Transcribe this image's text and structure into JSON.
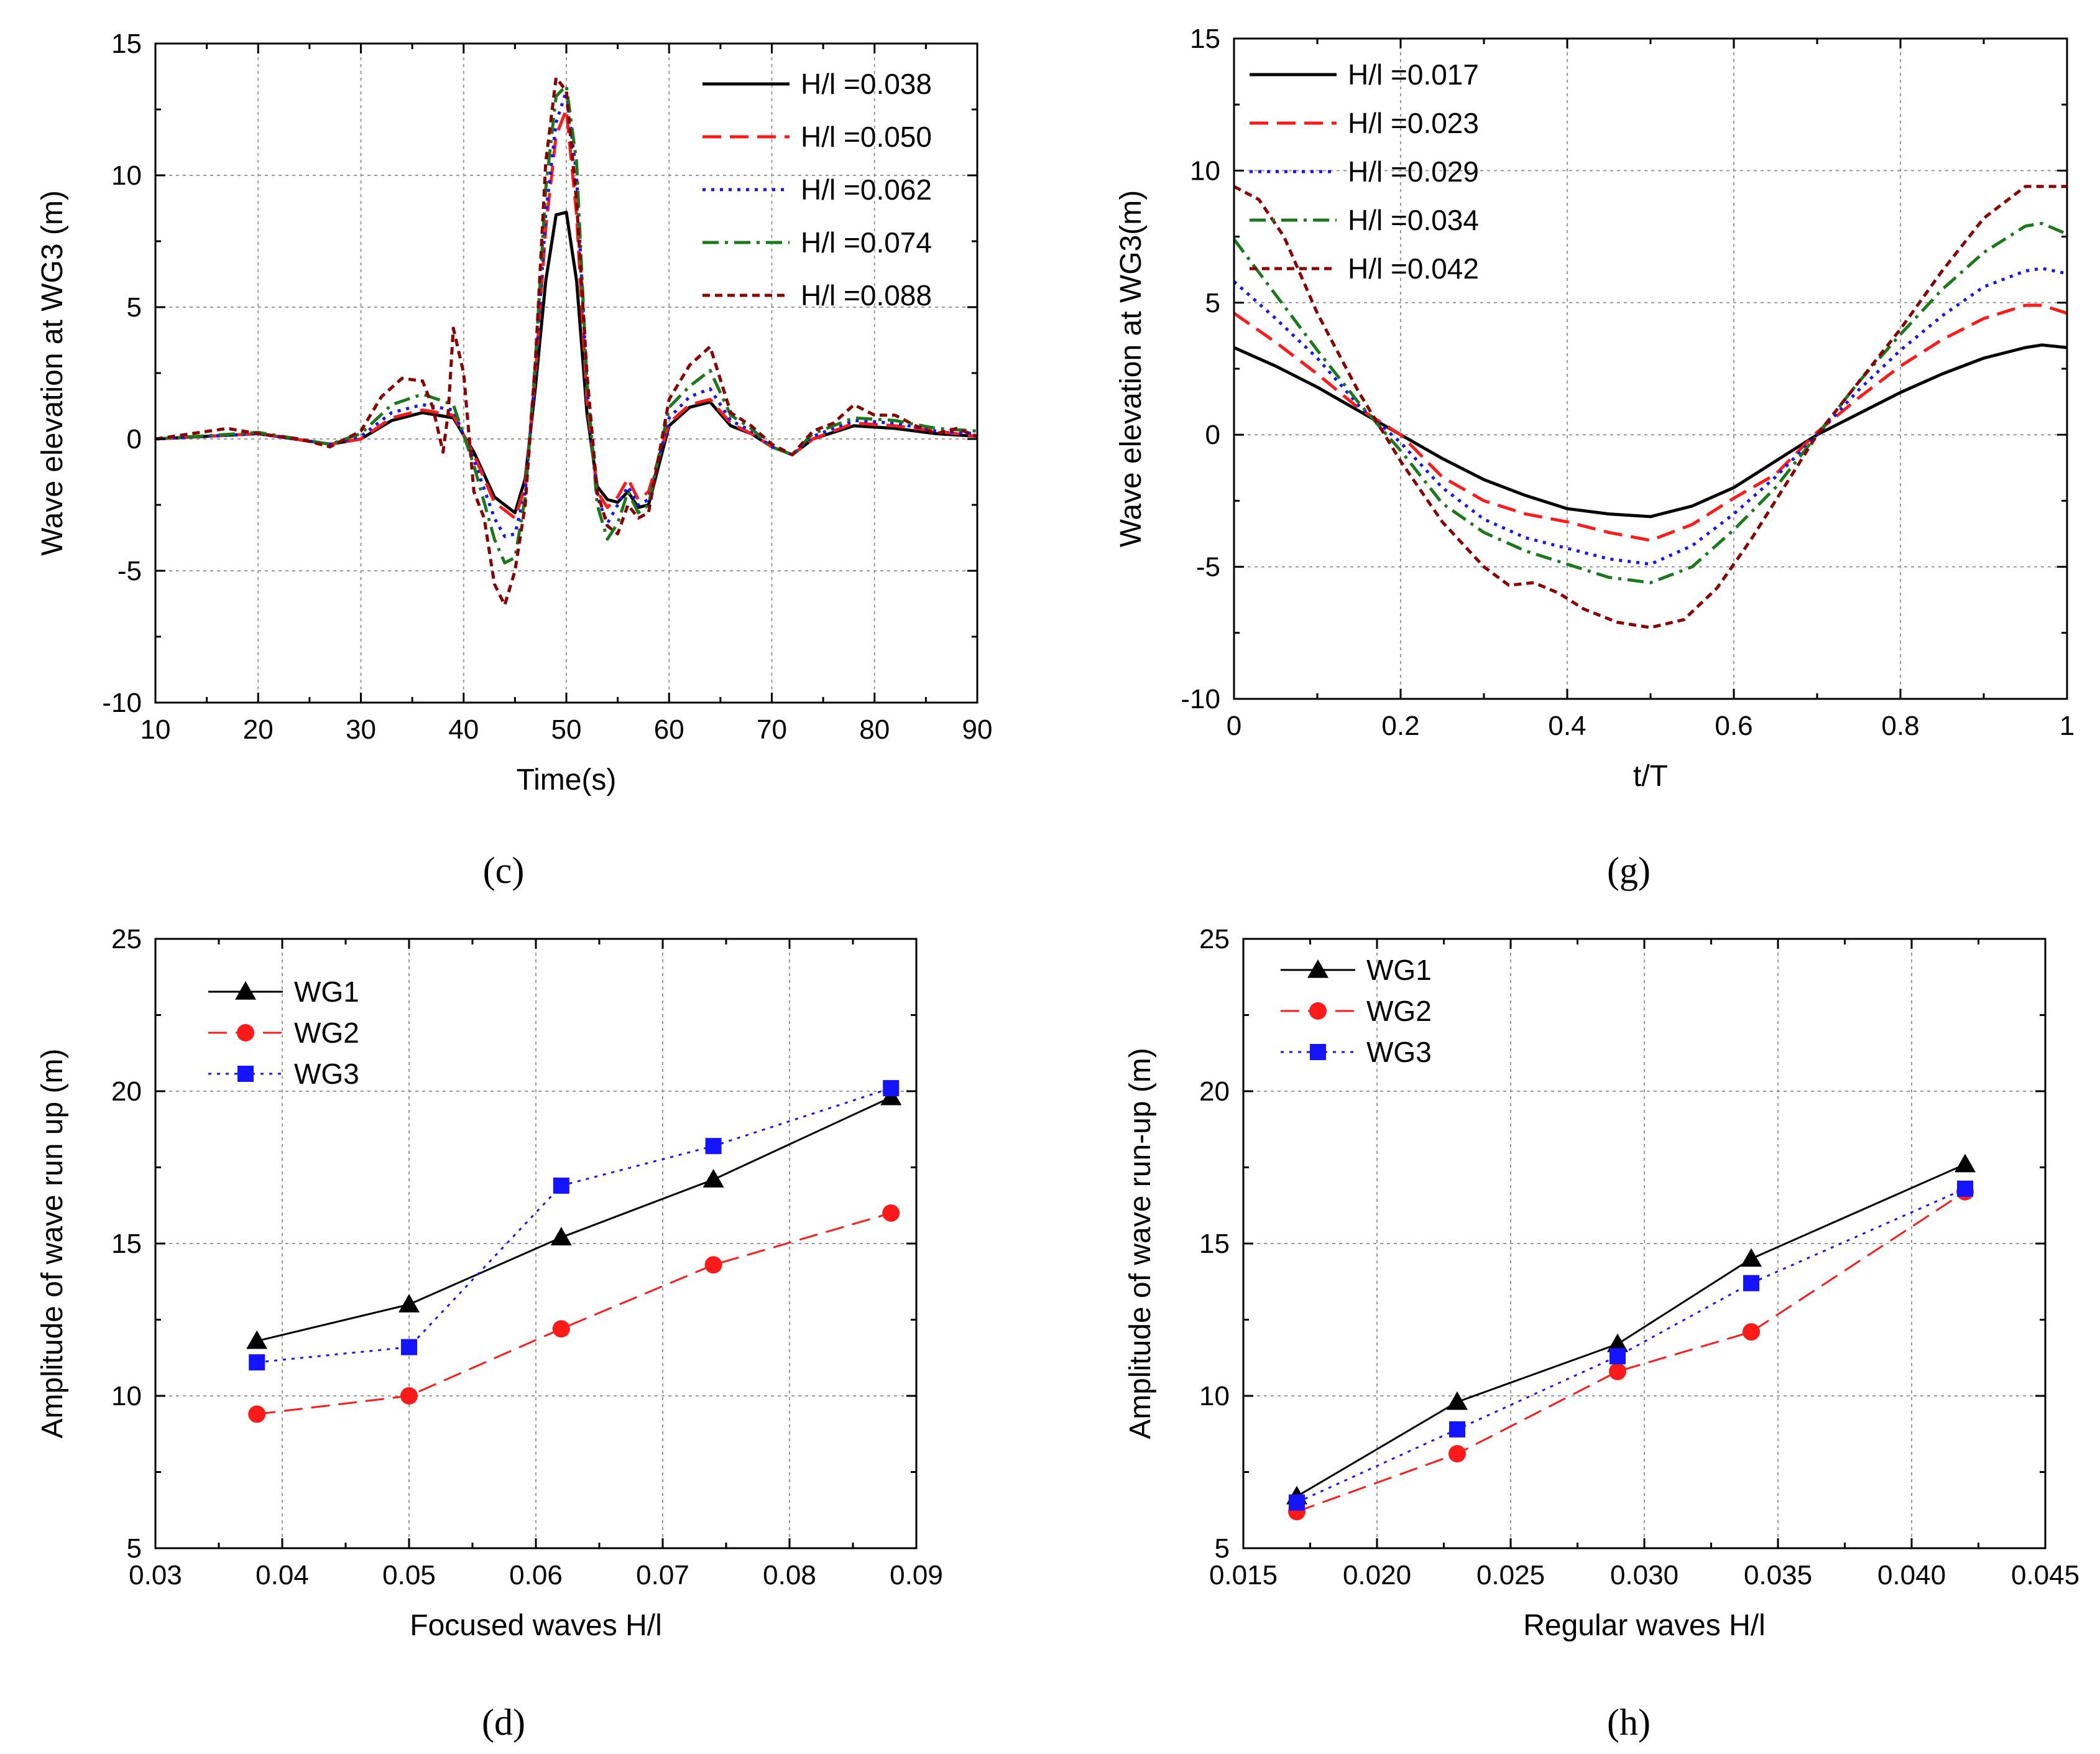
{
  "colors": {
    "black": "#000000",
    "red": "#ff1a1a",
    "blue": "#1414ff",
    "green": "#1a7a1a",
    "darkred": "#8b0000"
  },
  "chart_data": [
    {
      "id": "c",
      "type": "line",
      "panel_label": "(c)",
      "title": "",
      "xlabel": "Time(s)",
      "ylabel": "Wave elevation at WG3 (m)",
      "xlim": [
        10,
        90
      ],
      "ylim": [
        -10,
        15
      ],
      "xticks": [
        10,
        20,
        30,
        40,
        50,
        60,
        70,
        80,
        90
      ],
      "yticks": [
        -10,
        -5,
        0,
        5,
        10,
        15
      ],
      "grid": true,
      "legend_position": "top-right",
      "series": [
        {
          "name": "H/l =0.038",
          "style": "solid",
          "color": "#000000",
          "x": [
            10,
            20,
            27,
            30,
            33,
            36,
            39,
            41,
            43,
            45,
            46,
            47,
            48,
            49,
            50,
            51,
            52,
            53,
            54,
            55,
            56,
            57,
            58,
            60,
            62,
            64,
            66,
            68,
            70,
            72,
            74,
            78,
            82,
            86,
            90
          ],
          "y": [
            0,
            0.2,
            -0.2,
            0,
            0.7,
            1.0,
            0.8,
            -0.5,
            -2.2,
            -2.8,
            -1.5,
            2.0,
            6.0,
            8.5,
            8.6,
            6.0,
            1.0,
            -1.8,
            -2.3,
            -2.4,
            -2.0,
            -2.6,
            -2.5,
            0.5,
            1.2,
            1.4,
            0.5,
            0.2,
            -0.3,
            -0.6,
            0.0,
            0.5,
            0.4,
            0.2,
            0.1
          ]
        },
        {
          "name": "H/l =0.050",
          "style": "dashed",
          "color": "#ff1a1a",
          "x": [
            10,
            20,
            27,
            30,
            33,
            36,
            39,
            41,
            43,
            45,
            46,
            47,
            48,
            49,
            50,
            51,
            52,
            53,
            54,
            55,
            56,
            57,
            58,
            60,
            62,
            64,
            66,
            68,
            70,
            72,
            74,
            78,
            82,
            86,
            90
          ],
          "y": [
            0,
            0.2,
            -0.2,
            0,
            0.8,
            1.1,
            0.9,
            -0.6,
            -2.4,
            -3.0,
            -1.8,
            2.5,
            8.0,
            11.5,
            12.5,
            8.5,
            1.5,
            -2.0,
            -2.6,
            -2.2,
            -1.5,
            -2.3,
            -2.0,
            0.6,
            1.3,
            1.5,
            0.6,
            0.2,
            -0.3,
            -0.6,
            0.0,
            0.6,
            0.5,
            0.3,
            0.1
          ]
        },
        {
          "name": "H/l =0.062",
          "style": "dotted",
          "color": "#1414ff",
          "x": [
            10,
            20,
            27,
            30,
            33,
            36,
            39,
            41,
            43,
            44,
            45,
            46,
            47,
            48,
            49,
            50,
            51,
            52,
            53,
            54,
            55,
            56,
            57,
            58,
            60,
            62,
            64,
            66,
            68,
            70,
            72,
            74,
            78,
            82,
            86,
            90
          ],
          "y": [
            0,
            0.2,
            -0.2,
            0.1,
            1.0,
            1.3,
            1.1,
            -0.8,
            -3.0,
            -3.7,
            -3.6,
            -2.0,
            2.5,
            8.5,
            12.0,
            13.2,
            10.0,
            2.0,
            -2.2,
            -3.2,
            -2.5,
            -1.8,
            -2.5,
            -2.3,
            0.8,
            1.6,
            1.9,
            0.7,
            0.3,
            -0.3,
            -0.6,
            0.1,
            0.7,
            0.6,
            0.3,
            0.2
          ]
        },
        {
          "name": "H/l =0.074",
          "style": "dashdot",
          "color": "#1a7a1a",
          "x": [
            10,
            20,
            27,
            30,
            33,
            36,
            39,
            41,
            43,
            44,
            45,
            46,
            47,
            48,
            49,
            50,
            51,
            52,
            53,
            54,
            55,
            56,
            57,
            58,
            60,
            62,
            64,
            66,
            68,
            70,
            72,
            74,
            78,
            82,
            86,
            90
          ],
          "y": [
            0,
            0.25,
            -0.2,
            0.2,
            1.3,
            1.7,
            1.3,
            -1.0,
            -3.8,
            -4.7,
            -4.5,
            -2.2,
            3.0,
            9.5,
            13.0,
            13.4,
            10.5,
            2.2,
            -2.5,
            -3.8,
            -3.2,
            -2.0,
            -2.8,
            -2.5,
            1.2,
            2.0,
            2.6,
            0.9,
            0.4,
            -0.3,
            -0.6,
            0.2,
            0.8,
            0.7,
            0.4,
            0.3
          ]
        },
        {
          "name": "H/l =0.088",
          "style": "shortdash",
          "color": "#8b0000",
          "x": [
            10,
            17,
            20,
            24,
            27,
            30,
            32,
            34,
            36,
            37,
            38,
            38.5,
            39,
            40,
            41,
            42,
            43,
            44,
            45,
            46,
            47,
            48,
            49,
            50,
            51,
            52,
            53,
            54,
            55,
            56,
            57,
            58,
            60,
            62,
            64,
            66,
            68,
            70,
            72,
            74,
            76,
            78,
            80,
            82,
            84,
            86,
            88,
            90
          ],
          "y": [
            0,
            0.4,
            0.2,
            0,
            -0.3,
            0.3,
            1.6,
            2.3,
            2.2,
            1.2,
            -0.5,
            1.0,
            4.2,
            2.5,
            -2.0,
            -3.0,
            -5.5,
            -6.3,
            -5.0,
            -2.5,
            3.0,
            10.5,
            13.7,
            13.2,
            9.0,
            2.5,
            -2.0,
            -3.3,
            -3.6,
            -2.5,
            -3.0,
            -2.8,
            1.5,
            2.8,
            3.5,
            1.0,
            0.5,
            -0.2,
            -0.6,
            0.3,
            0.6,
            1.3,
            0.9,
            0.9,
            0.5,
            0.2,
            0.4,
            0.1
          ]
        }
      ]
    },
    {
      "id": "g",
      "type": "line",
      "panel_label": "(g)",
      "title": "",
      "xlabel": "t/T",
      "ylabel": "Wave elevation at WG3(m)",
      "xlim": [
        0.0,
        1.0
      ],
      "ylim": [
        -10,
        15
      ],
      "xticks": [
        0.0,
        0.2,
        0.4,
        0.6,
        0.8,
        1.0
      ],
      "yticks": [
        -10,
        -5,
        0,
        5,
        10,
        15
      ],
      "grid": true,
      "legend_position": "top-left",
      "series": [
        {
          "name": "H/l =0.017",
          "style": "solid",
          "color": "#000000",
          "x": [
            0.0,
            0.05,
            0.1,
            0.15,
            0.2,
            0.25,
            0.3,
            0.35,
            0.4,
            0.45,
            0.5,
            0.55,
            0.6,
            0.65,
            0.7,
            0.75,
            0.8,
            0.85,
            0.9,
            0.95,
            0.97,
            1.0
          ],
          "y": [
            3.3,
            2.6,
            1.8,
            0.9,
            0.0,
            -0.9,
            -1.7,
            -2.3,
            -2.8,
            -3.0,
            -3.1,
            -2.7,
            -2.0,
            -1.0,
            0.0,
            0.8,
            1.6,
            2.3,
            2.9,
            3.3,
            3.4,
            3.3
          ]
        },
        {
          "name": "H/l =0.023",
          "style": "dashed",
          "color": "#ff1a1a",
          "x": [
            0.0,
            0.05,
            0.1,
            0.15,
            0.2,
            0.25,
            0.3,
            0.35,
            0.4,
            0.45,
            0.5,
            0.55,
            0.6,
            0.65,
            0.7,
            0.75,
            0.8,
            0.85,
            0.9,
            0.95,
            0.97,
            1.0
          ],
          "y": [
            4.6,
            3.5,
            2.3,
            1.0,
            0.0,
            -1.6,
            -2.5,
            -3.0,
            -3.3,
            -3.7,
            -4.0,
            -3.4,
            -2.4,
            -1.5,
            0.1,
            1.4,
            2.6,
            3.6,
            4.4,
            4.9,
            4.9,
            4.6
          ]
        },
        {
          "name": "H/l =0.029",
          "style": "dotted",
          "color": "#1414ff",
          "x": [
            0.0,
            0.05,
            0.1,
            0.15,
            0.2,
            0.25,
            0.3,
            0.35,
            0.4,
            0.45,
            0.5,
            0.55,
            0.6,
            0.65,
            0.7,
            0.75,
            0.8,
            0.85,
            0.9,
            0.95,
            0.97,
            1.0
          ],
          "y": [
            5.8,
            4.4,
            2.9,
            1.1,
            -0.3,
            -2.0,
            -3.2,
            -3.9,
            -4.3,
            -4.7,
            -4.9,
            -4.2,
            -3.0,
            -1.6,
            0.0,
            1.7,
            3.2,
            4.5,
            5.6,
            6.2,
            6.3,
            6.1
          ]
        },
        {
          "name": "H/l =0.034",
          "style": "dashdot",
          "color": "#1a7a1a",
          "x": [
            0.0,
            0.05,
            0.1,
            0.15,
            0.2,
            0.25,
            0.3,
            0.35,
            0.4,
            0.45,
            0.5,
            0.55,
            0.6,
            0.65,
            0.7,
            0.75,
            0.8,
            0.85,
            0.9,
            0.95,
            0.97,
            1.0
          ],
          "y": [
            7.4,
            5.3,
            3.2,
            1.2,
            -0.6,
            -2.6,
            -3.7,
            -4.4,
            -4.9,
            -5.4,
            -5.6,
            -5.0,
            -3.6,
            -2.0,
            0.0,
            2.0,
            3.8,
            5.5,
            6.9,
            7.9,
            8.0,
            7.6
          ]
        },
        {
          "name": "H/l =0.042",
          "style": "shortdash",
          "color": "#8b0000",
          "x": [
            0.0,
            0.03,
            0.06,
            0.1,
            0.15,
            0.2,
            0.25,
            0.3,
            0.33,
            0.36,
            0.39,
            0.42,
            0.46,
            0.5,
            0.54,
            0.58,
            0.62,
            0.66,
            0.7,
            0.75,
            0.8,
            0.85,
            0.9,
            0.95,
            1.0
          ],
          "y": [
            9.4,
            8.9,
            7.5,
            4.6,
            1.6,
            -1.0,
            -3.3,
            -5.0,
            -5.7,
            -5.6,
            -6.0,
            -6.6,
            -7.1,
            -7.3,
            -7.0,
            -5.8,
            -4.0,
            -2.0,
            0.0,
            2.0,
            4.0,
            6.2,
            8.2,
            9.4,
            9.4
          ]
        }
      ]
    },
    {
      "id": "d",
      "type": "line",
      "panel_label": "(d)",
      "title": "",
      "xlabel": "Focused waves H/l",
      "ylabel": "Amplitude of wave run up (m)",
      "xlim": [
        0.03,
        0.09
      ],
      "ylim": [
        5,
        25
      ],
      "xticks": [
        0.03,
        0.04,
        0.05,
        0.06,
        0.07,
        0.08,
        0.09
      ],
      "xtick_labels": [
        "0.03",
        "0.04",
        "0.05",
        "0.06",
        "0.07",
        "0.08",
        "0.09"
      ],
      "yticks": [
        5,
        10,
        15,
        20,
        25
      ],
      "grid": true,
      "legend_position": "top-left",
      "series": [
        {
          "name": "WG1",
          "style": "solid",
          "color": "#000000",
          "marker": "triangle",
          "x": [
            0.038,
            0.05,
            0.062,
            0.074,
            0.088
          ],
          "y": [
            11.8,
            13.0,
            15.2,
            17.1,
            19.8
          ]
        },
        {
          "name": "WG2",
          "style": "dashed",
          "color": "#ff1a1a",
          "marker": "circle",
          "x": [
            0.038,
            0.05,
            0.062,
            0.074,
            0.088
          ],
          "y": [
            9.4,
            10.0,
            12.2,
            14.3,
            16.0
          ]
        },
        {
          "name": "WG3",
          "style": "dotted",
          "color": "#1414ff",
          "marker": "square",
          "x": [
            0.038,
            0.05,
            0.062,
            0.074,
            0.088
          ],
          "y": [
            11.1,
            11.6,
            16.9,
            18.2,
            20.1
          ]
        }
      ]
    },
    {
      "id": "h",
      "type": "line",
      "panel_label": "(h)",
      "title": "",
      "xlabel": "Regular waves H/l",
      "ylabel": "Amplitude of wave run-up (m)",
      "xlim": [
        0.015,
        0.045
      ],
      "ylim": [
        5,
        25
      ],
      "xticks": [
        0.015,
        0.02,
        0.025,
        0.03,
        0.035,
        0.04,
        0.045
      ],
      "xtick_labels": [
        "0.015",
        "0.020",
        "0.025",
        "0.030",
        "0.035",
        "0.040",
        "0.045"
      ],
      "yticks": [
        5,
        10,
        15,
        20,
        25
      ],
      "grid": true,
      "legend_position": "top-left",
      "series": [
        {
          "name": "WG1",
          "style": "solid",
          "color": "#000000",
          "marker": "triangle",
          "x": [
            0.017,
            0.023,
            0.029,
            0.034,
            0.042
          ],
          "y": [
            6.7,
            9.8,
            11.7,
            14.5,
            17.6
          ]
        },
        {
          "name": "WG2",
          "style": "dashed",
          "color": "#ff1a1a",
          "marker": "circle",
          "x": [
            0.017,
            0.023,
            0.029,
            0.034,
            0.042
          ],
          "y": [
            6.2,
            8.1,
            10.8,
            12.1,
            16.7
          ]
        },
        {
          "name": "WG3",
          "style": "dotted",
          "color": "#1414ff",
          "marker": "square",
          "x": [
            0.017,
            0.023,
            0.029,
            0.034,
            0.042
          ],
          "y": [
            6.5,
            8.9,
            11.3,
            13.7,
            16.8
          ]
        }
      ]
    }
  ]
}
